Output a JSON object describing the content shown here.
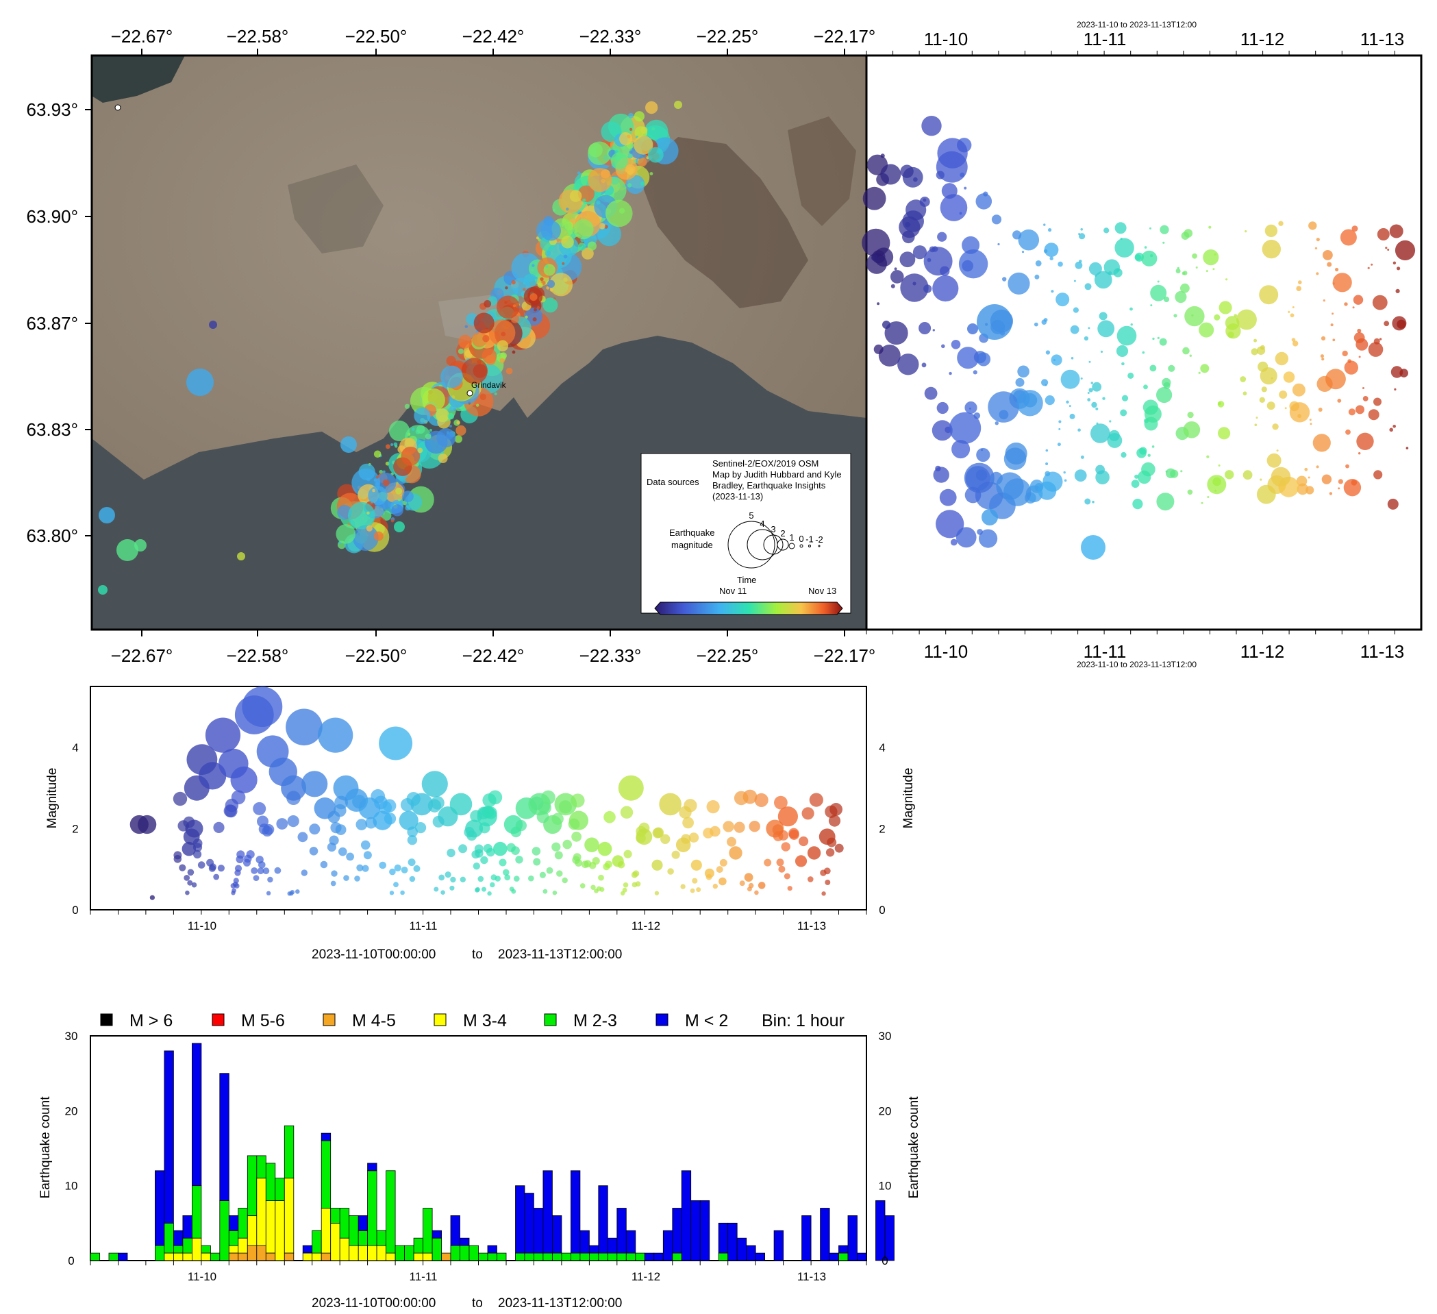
{
  "chart_data": [
    {
      "type": "scatter",
      "subtype": "map",
      "x_ticks": [
        "−22.67°",
        "−22.58°",
        "−22.50°",
        "−22.42°",
        "−22.33°",
        "−22.25°",
        "−22.17°"
      ],
      "y_ticks": [
        "63.93°",
        "63.90°",
        "63.87°",
        "63.83°",
        "63.80°"
      ],
      "place_label": "Grindavik",
      "legend": {
        "data_sources_label": "Data sources",
        "data_sources_lines": [
          "Sentinel-2/EOX/2019 OSM",
          "Map by Judith Hubbard and Kyle",
          "Bradley, Earthquake Insights",
          "(2023-11-13)"
        ],
        "magnitude_label_lines": [
          "Earthquake",
          "magnitude"
        ],
        "magnitude_values": [
          "5",
          "4",
          "3",
          "2",
          "1",
          "0",
          "-1",
          "-2"
        ],
        "time_label": "Time",
        "time_ticks": [
          "Nov 11",
          "Nov 13"
        ]
      },
      "colors": {
        "land": "#8a7e6e",
        "sea": "#4b5257",
        "grid_frame": "#000000"
      }
    },
    {
      "type": "scatter",
      "subtype": "time-vs-latitude",
      "top_label": "2023-11-10 to 2023-11-13T12:00",
      "bottom_label": "2023-11-10 to 2023-11-13T12:00",
      "x_ticks": [
        "11-10",
        "11-11",
        "11-12",
        "11-13"
      ]
    },
    {
      "type": "scatter",
      "subtype": "magnitude-vs-time",
      "ylabel": "Magnitude",
      "ylim": [
        0,
        5.5
      ],
      "y_ticks": [
        "0",
        "2",
        "4"
      ],
      "x_ticks": [
        "11-10",
        "11-11",
        "11-12",
        "11-13"
      ],
      "xlabel_start": "2023-11-10T00:00:00",
      "xlabel_to": "to",
      "xlabel_end": "2023-11-13T12:00:00",
      "points": [
        {
          "t": 0.2,
          "m": 2.1
        },
        {
          "t": 0.5,
          "m": 2.1
        },
        {
          "t": 0.7,
          "m": 0.3
        },
        {
          "t": 2.1,
          "m": 1.5
        },
        {
          "t": 2.2,
          "m": 1.8
        },
        {
          "t": 2.3,
          "m": 2.0
        },
        {
          "t": 2.4,
          "m": 3.0
        },
        {
          "t": 2.6,
          "m": 3.7
        },
        {
          "t": 3.0,
          "m": 3.3
        },
        {
          "t": 3.4,
          "m": 4.3
        },
        {
          "t": 3.8,
          "m": 3.6
        },
        {
          "t": 4.2,
          "m": 3.2
        },
        {
          "t": 4.6,
          "m": 4.8
        },
        {
          "t": 4.9,
          "m": 5.0
        },
        {
          "t": 5.3,
          "m": 3.9
        },
        {
          "t": 5.7,
          "m": 3.4
        },
        {
          "t": 6.1,
          "m": 3.0
        },
        {
          "t": 6.5,
          "m": 4.5
        },
        {
          "t": 6.9,
          "m": 3.1
        },
        {
          "t": 7.3,
          "m": 2.5
        },
        {
          "t": 7.7,
          "m": 4.3
        },
        {
          "t": 8.1,
          "m": 3.0
        },
        {
          "t": 8.5,
          "m": 2.7
        },
        {
          "t": 9.0,
          "m": 2.5
        },
        {
          "t": 9.5,
          "m": 2.2
        },
        {
          "t": 10.0,
          "m": 4.1
        },
        {
          "t": 10.5,
          "m": 2.2
        },
        {
          "t": 11.0,
          "m": 2.6
        },
        {
          "t": 11.5,
          "m": 3.1
        },
        {
          "t": 12.0,
          "m": 2.3
        },
        {
          "t": 12.5,
          "m": 2.6
        },
        {
          "t": 13.0,
          "m": 2.0
        },
        {
          "t": 13.5,
          "m": 2.3
        },
        {
          "t": 14.0,
          "m": 1.5
        },
        {
          "t": 14.5,
          "m": 2.1
        },
        {
          "t": 15.0,
          "m": 2.5
        },
        {
          "t": 15.5,
          "m": 2.6
        },
        {
          "t": 16.0,
          "m": 2.1
        },
        {
          "t": 16.5,
          "m": 2.6
        },
        {
          "t": 17.0,
          "m": 2.2
        },
        {
          "t": 17.5,
          "m": 1.6
        },
        {
          "t": 18.0,
          "m": 1.5
        },
        {
          "t": 18.5,
          "m": 1.2
        },
        {
          "t": 19.0,
          "m": 3.0
        },
        {
          "t": 19.5,
          "m": 1.8
        },
        {
          "t": 20.0,
          "m": 1.1
        },
        {
          "t": 20.5,
          "m": 2.6
        },
        {
          "t": 21.0,
          "m": 1.6
        },
        {
          "t": 21.5,
          "m": 1.1
        },
        {
          "t": 22.0,
          "m": 0.9
        },
        {
          "t": 22.5,
          "m": 0.7
        },
        {
          "t": 23.0,
          "m": 1.4
        },
        {
          "t": 23.5,
          "m": 0.8
        },
        {
          "t": 24.0,
          "m": 0.6
        },
        {
          "t": 24.5,
          "m": 2.0
        },
        {
          "t": 25.0,
          "m": 2.3
        },
        {
          "t": 25.5,
          "m": 1.2
        },
        {
          "t": 26.0,
          "m": 1.4
        },
        {
          "t": 26.5,
          "m": 1.8
        }
      ]
    },
    {
      "type": "bar",
      "subtype": "stacked-histogram",
      "ylabel": "Earthquake count",
      "ylim": [
        0,
        30
      ],
      "y_ticks": [
        "0",
        "10",
        "20",
        "30"
      ],
      "x_ticks": [
        "11-10",
        "11-11",
        "11-12",
        "11-13"
      ],
      "xlabel_start": "2023-11-10T00:00:00",
      "xlabel_to": "to",
      "xlabel_end": "2023-11-13T12:00:00",
      "bin_label": "Bin: 1 hour",
      "series": [
        {
          "name": "M > 6",
          "color": "#000000"
        },
        {
          "name": "M 5-6",
          "color": "#ff0000"
        },
        {
          "name": "M 4-5",
          "color": "#f5a623"
        },
        {
          "name": "M 3-4",
          "color": "#ffff00"
        },
        {
          "name": "M 2-3",
          "color": "#00ee00"
        },
        {
          "name": "M < 2",
          "color": "#0000ee"
        }
      ],
      "bins": [
        {
          "bin": -9,
          "m45": 0,
          "m34": 0,
          "m23": 1,
          "mlt2": 0
        },
        {
          "bin": -7,
          "m45": 0,
          "m34": 0,
          "m23": 1,
          "mlt2": 0
        },
        {
          "bin": -6,
          "m45": 0,
          "m34": 0,
          "m23": 0,
          "mlt2": 1
        },
        {
          "bin": -2,
          "m45": 0,
          "m34": 0,
          "m23": 2,
          "mlt2": 10
        },
        {
          "bin": -1,
          "m45": 0,
          "m34": 1,
          "m23": 4,
          "mlt2": 23
        },
        {
          "bin": 0,
          "m45": 0,
          "m34": 1,
          "m23": 1,
          "mlt2": 2
        },
        {
          "bin": 1,
          "m45": 0,
          "m34": 1,
          "m23": 2,
          "mlt2": 3
        },
        {
          "bin": 2,
          "m45": 0,
          "m34": 3,
          "m23": 7,
          "mlt2": 19
        },
        {
          "bin": 3,
          "m45": 0,
          "m34": 1,
          "m23": 1,
          "mlt2": 0
        },
        {
          "bin": 4,
          "m45": 0,
          "m34": 0,
          "m23": 1,
          "mlt2": 0
        },
        {
          "bin": 5,
          "m45": 0,
          "m34": 0,
          "m23": 8,
          "mlt2": 17
        },
        {
          "bin": 6,
          "m45": 1,
          "m34": 1,
          "m23": 2,
          "mlt2": 2
        },
        {
          "bin": 7,
          "m45": 1,
          "m34": 2,
          "m23": 4,
          "mlt2": 0
        },
        {
          "bin": 8,
          "m45": 2,
          "m34": 4,
          "m23": 8,
          "mlt2": 0
        },
        {
          "bin": 9,
          "m45": 2,
          "m34": 9,
          "m23": 3,
          "mlt2": 0
        },
        {
          "bin": 10,
          "m45": 1,
          "m34": 7,
          "m23": 5,
          "mlt2": 0
        },
        {
          "bin": 11,
          "m45": 0,
          "m34": 8,
          "m23": 3,
          "mlt2": 0
        },
        {
          "bin": 12,
          "m45": 1,
          "m34": 10,
          "m23": 7,
          "mlt2": 0
        },
        {
          "bin": 14,
          "m45": 0,
          "m34": 1,
          "m23": 0,
          "mlt2": 1
        },
        {
          "bin": 15,
          "m45": 0,
          "m34": 1,
          "m23": 3,
          "mlt2": 0
        },
        {
          "bin": 16,
          "m45": 1,
          "m34": 6,
          "m23": 9,
          "mlt2": 1
        },
        {
          "bin": 17,
          "m45": 0,
          "m34": 5,
          "m23": 2,
          "mlt2": 0
        },
        {
          "bin": 18,
          "m45": 0,
          "m34": 3,
          "m23": 4,
          "mlt2": 0
        },
        {
          "bin": 19,
          "m45": 0,
          "m34": 2,
          "m23": 4,
          "mlt2": 0
        },
        {
          "bin": 20,
          "m45": 0,
          "m34": 2,
          "m23": 2,
          "mlt2": 2
        },
        {
          "bin": 21,
          "m45": 0,
          "m34": 2,
          "m23": 10,
          "mlt2": 1
        },
        {
          "bin": 22,
          "m45": 0,
          "m34": 2,
          "m23": 2,
          "mlt2": 0
        },
        {
          "bin": 23,
          "m45": 0,
          "m34": 1,
          "m23": 11,
          "mlt2": 0
        },
        {
          "bin": 24,
          "m45": 0,
          "m34": 0,
          "m23": 2,
          "mlt2": 0
        },
        {
          "bin": 25,
          "m45": 0,
          "m34": 0,
          "m23": 2,
          "mlt2": 0
        },
        {
          "bin": 26,
          "m45": 0,
          "m34": 1,
          "m23": 2,
          "mlt2": 0
        },
        {
          "bin": 27,
          "m45": 0,
          "m34": 1,
          "m23": 6,
          "mlt2": 0
        },
        {
          "bin": 28,
          "m45": 0,
          "m34": 0,
          "m23": 3,
          "mlt2": 1
        },
        {
          "bin": 29,
          "m45": 1,
          "m34": 0,
          "m23": 0,
          "mlt2": 0
        },
        {
          "bin": 30,
          "m45": 0,
          "m34": 0,
          "m23": 2,
          "mlt2": 4
        },
        {
          "bin": 31,
          "m45": 0,
          "m34": 0,
          "m23": 2,
          "mlt2": 1
        },
        {
          "bin": 32,
          "m45": 0,
          "m34": 0,
          "m23": 2,
          "mlt2": 0
        },
        {
          "bin": 33,
          "m45": 0,
          "m34": 0,
          "m23": 1,
          "mlt2": 0
        },
        {
          "bin": 34,
          "m45": 0,
          "m34": 0,
          "m23": 1,
          "mlt2": 1
        },
        {
          "bin": 35,
          "m45": 0,
          "m34": 0,
          "m23": 1,
          "mlt2": 0
        },
        {
          "bin": 37,
          "m45": 0,
          "m34": 0,
          "m23": 1,
          "mlt2": 9
        },
        {
          "bin": 38,
          "m45": 0,
          "m34": 0,
          "m23": 1,
          "mlt2": 8
        },
        {
          "bin": 39,
          "m45": 0,
          "m34": 0,
          "m23": 1,
          "mlt2": 6
        },
        {
          "bin": 40,
          "m45": 0,
          "m34": 0,
          "m23": 1,
          "mlt2": 11
        },
        {
          "bin": 41,
          "m45": 0,
          "m34": 0,
          "m23": 1,
          "mlt2": 5
        },
        {
          "bin": 42,
          "m45": 0,
          "m34": 0,
          "m23": 1,
          "mlt2": 0
        },
        {
          "bin": 43,
          "m45": 0,
          "m34": 0,
          "m23": 1,
          "mlt2": 11
        },
        {
          "bin": 44,
          "m45": 0,
          "m34": 0,
          "m23": 1,
          "mlt2": 3
        },
        {
          "bin": 45,
          "m45": 0,
          "m34": 0,
          "m23": 1,
          "mlt2": 1
        },
        {
          "bin": 46,
          "m45": 0,
          "m34": 0,
          "m23": 1,
          "mlt2": 9
        },
        {
          "bin": 47,
          "m45": 0,
          "m34": 0,
          "m23": 1,
          "mlt2": 2
        },
        {
          "bin": 48,
          "m45": 0,
          "m34": 0,
          "m23": 1,
          "mlt2": 6
        },
        {
          "bin": 49,
          "m45": 0,
          "m34": 0,
          "m23": 1,
          "mlt2": 3
        },
        {
          "bin": 50,
          "m45": 0,
          "m34": 0,
          "m23": 1,
          "mlt2": 0
        },
        {
          "bin": 51,
          "m45": 0,
          "m34": 0,
          "m23": 0,
          "mlt2": 1
        },
        {
          "bin": 52,
          "m45": 0,
          "m34": 0,
          "m23": 0,
          "mlt2": 1
        },
        {
          "bin": 53,
          "m45": 0,
          "m34": 0,
          "m23": 0,
          "mlt2": 4
        },
        {
          "bin": 54,
          "m45": 0,
          "m34": 0,
          "m23": 1,
          "mlt2": 6
        },
        {
          "bin": 55,
          "m45": 0,
          "m34": 0,
          "m23": 0,
          "mlt2": 12
        },
        {
          "bin": 56,
          "m45": 0,
          "m34": 0,
          "m23": 0,
          "mlt2": 8
        },
        {
          "bin": 57,
          "m45": 0,
          "m34": 0,
          "m23": 0,
          "mlt2": 8
        },
        {
          "bin": 59,
          "m45": 0,
          "m34": 0,
          "m23": 1,
          "mlt2": 4
        },
        {
          "bin": 60,
          "m45": 0,
          "m34": 0,
          "m23": 0,
          "mlt2": 5
        },
        {
          "bin": 61,
          "m45": 0,
          "m34": 0,
          "m23": 0,
          "mlt2": 3
        },
        {
          "bin": 62,
          "m45": 0,
          "m34": 0,
          "m23": 0,
          "mlt2": 2
        },
        {
          "bin": 63,
          "m45": 0,
          "m34": 0,
          "m23": 0,
          "mlt2": 1
        },
        {
          "bin": 65,
          "m45": 0,
          "m34": 0,
          "m23": 0,
          "mlt2": 4
        },
        {
          "bin": 68,
          "m45": 0,
          "m34": 0,
          "m23": 0,
          "mlt2": 6
        },
        {
          "bin": 70,
          "m45": 0,
          "m34": 0,
          "m23": 0,
          "mlt2": 7
        },
        {
          "bin": 71,
          "m45": 0,
          "m34": 0,
          "m23": 0,
          "mlt2": 1
        },
        {
          "bin": 72,
          "m45": 0,
          "m34": 0,
          "m23": 1,
          "mlt2": 1
        },
        {
          "bin": 73,
          "m45": 0,
          "m34": 0,
          "m23": 0,
          "mlt2": 6
        },
        {
          "bin": 74,
          "m45": 0,
          "m34": 0,
          "m23": 0,
          "mlt2": 1
        },
        {
          "bin": 76,
          "m45": 0,
          "m34": 0,
          "m23": 0,
          "mlt2": 8
        },
        {
          "bin": 77,
          "m45": 0,
          "m34": 0,
          "m23": 0,
          "mlt2": 6
        }
      ]
    }
  ]
}
